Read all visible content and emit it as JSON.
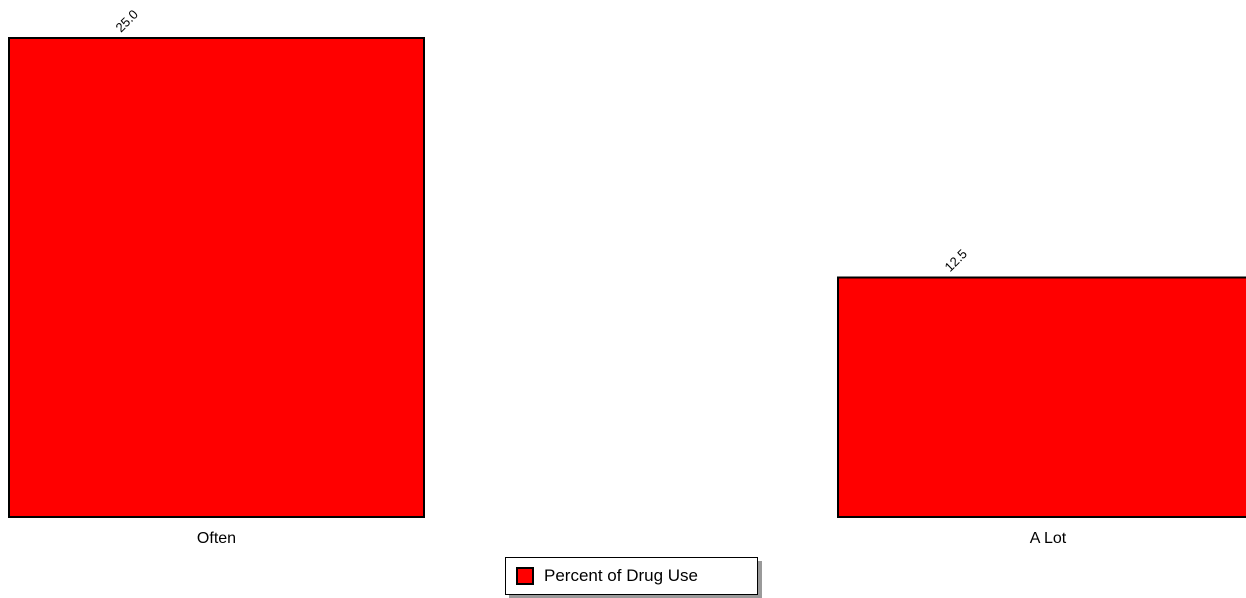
{
  "chart_data": {
    "type": "bar",
    "categories": [
      "Often",
      "A Lot"
    ],
    "series": [
      {
        "name": "Percent of Drug Use",
        "values": [
          25.0,
          12.5
        ],
        "data_labels": [
          "25.0",
          "12.5"
        ]
      }
    ],
    "ylim": [
      0,
      25.0
    ],
    "grid": false,
    "legend_position": "bottom-center",
    "colors": {
      "bar_fill": "#ff0000",
      "bar_stroke": "#000000"
    }
  }
}
